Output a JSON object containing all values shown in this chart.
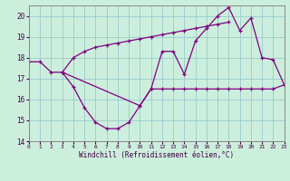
{
  "xlabel": "Windchill (Refroidissement éolien,°C)",
  "x_values": [
    0,
    1,
    2,
    3,
    4,
    5,
    6,
    7,
    8,
    9,
    10,
    11,
    12,
    13,
    14,
    15,
    16,
    17,
    18,
    19,
    20,
    21,
    22,
    23
  ],
  "line1_y": [
    17.8,
    17.8,
    17.3,
    17.3,
    16.6,
    15.6,
    14.9,
    14.6,
    14.6,
    14.9,
    15.7,
    16.5,
    16.5,
    16.5,
    16.5,
    16.5,
    16.5,
    16.5,
    16.5,
    16.5,
    16.5,
    16.5,
    16.5,
    16.7
  ],
  "line2_y": [
    null,
    null,
    null,
    17.3,
    null,
    null,
    null,
    null,
    null,
    null,
    15.7,
    16.5,
    18.3,
    18.3,
    17.2,
    18.8,
    19.4,
    20.0,
    20.4,
    19.3,
    19.9,
    18.0,
    17.9,
    16.7
  ],
  "line3_y": [
    null,
    null,
    null,
    17.3,
    18.0,
    18.3,
    18.5,
    18.6,
    18.7,
    18.8,
    18.9,
    19.0,
    19.1,
    19.2,
    19.3,
    19.4,
    19.5,
    19.6,
    19.7,
    null,
    null,
    null,
    null,
    null
  ],
  "line_color": "#800080",
  "bg_color": "#cceedd",
  "grid_color": "#99cccc",
  "ylim": [
    14,
    20.5
  ],
  "xlim": [
    0,
    23
  ],
  "yticks": [
    14,
    15,
    16,
    17,
    18,
    19,
    20
  ],
  "xticks": [
    0,
    1,
    2,
    3,
    4,
    5,
    6,
    7,
    8,
    9,
    10,
    11,
    12,
    13,
    14,
    15,
    16,
    17,
    18,
    19,
    20,
    21,
    22,
    23
  ]
}
